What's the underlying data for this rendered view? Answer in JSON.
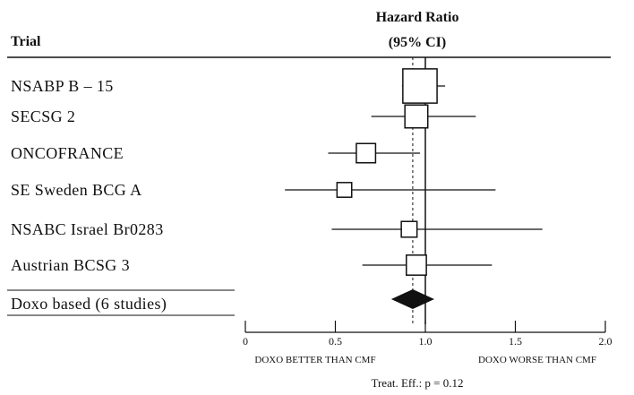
{
  "header": {
    "trial_label": "Trial",
    "hr_label_line1": "Hazard Ratio",
    "hr_label_line2": "(95% CI)"
  },
  "axis": {
    "ticks": [
      "0",
      "0.5",
      "1.0",
      "1.5",
      "2.0"
    ],
    "left_note": "DOXO BETTER THAN CMF",
    "right_note": "DOXO WORSE THAN CMF"
  },
  "footer": {
    "test_text": "Treat. Eff.: p = 0.12"
  },
  "chart_data": {
    "type": "forest",
    "xlim": [
      0,
      2.0
    ],
    "reference_line": 1.0,
    "pooled_line": 0.93,
    "studies": [
      {
        "name": "NSABP  B – 15",
        "hr": 0.97,
        "lo": 0.87,
        "hi": 1.11,
        "weight": 0.38
      },
      {
        "name": "SECSG  2",
        "hr": 0.95,
        "lo": 0.7,
        "hi": 1.28,
        "weight": 0.17
      },
      {
        "name": "ONCOFRANCE",
        "hr": 0.67,
        "lo": 0.46,
        "hi": 0.97,
        "weight": 0.12
      },
      {
        "name": "SE  Sweden  BCG  A",
        "hr": 0.55,
        "lo": 0.22,
        "hi": 1.39,
        "weight": 0.07
      },
      {
        "name": "NSABC  Israel  Br0283",
        "hr": 0.91,
        "lo": 0.48,
        "hi": 1.65,
        "weight": 0.08
      },
      {
        "name": "Austrian  BCSG  3",
        "hr": 0.95,
        "lo": 0.65,
        "hi": 1.37,
        "weight": 0.13
      }
    ],
    "pooled": {
      "name": "Doxo  based  (6 studies)",
      "hr": 0.93,
      "lo": 0.84,
      "hi": 1.02
    }
  }
}
